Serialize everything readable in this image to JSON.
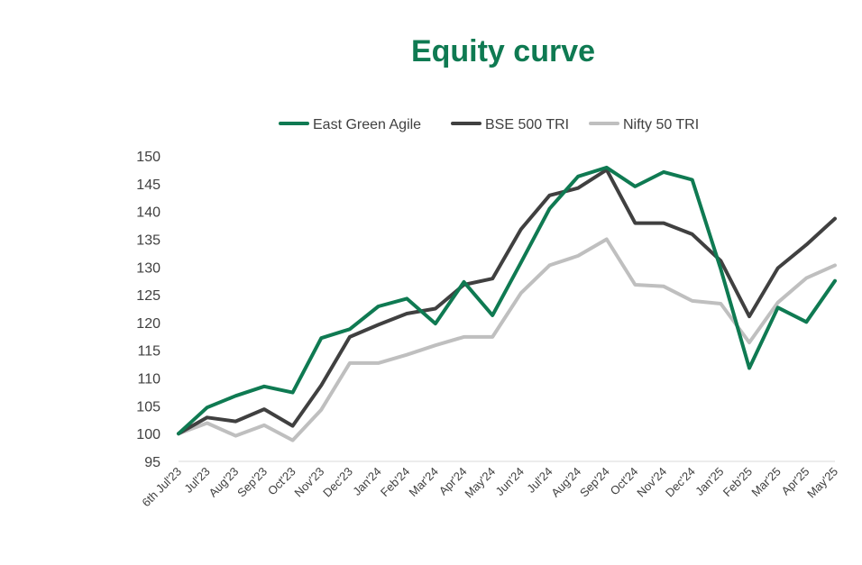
{
  "chart_data": {
    "type": "line",
    "title": "Equity curve",
    "xlabel": "",
    "ylabel": "",
    "ylim": [
      95,
      150
    ],
    "yticks": [
      95,
      100,
      105,
      110,
      115,
      120,
      125,
      130,
      135,
      140,
      145,
      150
    ],
    "grid": false,
    "legend": "top",
    "categories": [
      "6th Jul'23",
      "Jul'23",
      "Aug'23",
      "Sep'23",
      "Oct'23",
      "Nov'23",
      "Dec'23",
      "Jan'24",
      "Feb'24",
      "Mar'24",
      "Apr'24",
      "May'24",
      "Jun'24",
      "Jul'24",
      "Aug'24",
      "Sep'24",
      "Oct'24",
      "Nov'24",
      "Dec'24",
      "Jan'25",
      "Feb'25",
      "Mar'25",
      "Apr'25",
      "May'25"
    ],
    "series": [
      {
        "name": "East Green Agile",
        "color": "#0f7a52",
        "values": [
          100,
          104.7,
          106.8,
          108.5,
          107.4,
          117.2,
          118.8,
          122.9,
          124.3,
          119.8,
          127.3,
          121.3,
          130.8,
          140.5,
          146.3,
          147.9,
          144.5,
          147.1,
          145.7,
          129.6,
          111.8,
          122.7,
          120.1,
          127.5
        ]
      },
      {
        "name": "BSE 500 TRI",
        "color": "#404040",
        "values": [
          100,
          102.9,
          102.2,
          104.4,
          101.4,
          108.7,
          117.4,
          119.6,
          121.6,
          122.5,
          126.8,
          127.9,
          136.8,
          142.9,
          144.2,
          147.5,
          137.9,
          137.9,
          135.9,
          131.1,
          121.1,
          129.8,
          134.0,
          138.7
        ]
      },
      {
        "name": "Nifty 50 TRI",
        "color": "#bfbfbf",
        "values": [
          100,
          101.9,
          99.6,
          101.5,
          98.8,
          104.3,
          112.7,
          112.7,
          114.2,
          115.9,
          117.4,
          117.4,
          125.3,
          130.3,
          132.0,
          135.0,
          126.8,
          126.5,
          123.9,
          123.4,
          116.4,
          123.6,
          128.0,
          130.3
        ]
      }
    ]
  }
}
